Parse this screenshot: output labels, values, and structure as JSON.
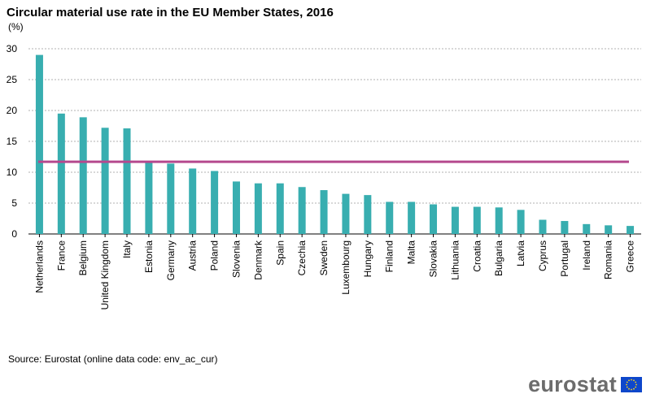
{
  "chart_data": {
    "type": "bar",
    "title": "Circular material use rate in the EU Member States, 2016",
    "ylabel": "(%)",
    "xlabel": "",
    "ylim": [
      0,
      30
    ],
    "yticks": [
      0,
      5,
      10,
      15,
      20,
      25,
      30
    ],
    "grid": true,
    "categories": [
      "Netherlands",
      "France",
      "Belgium",
      "United Kingdom",
      "Italy",
      "Estonia",
      "Germany",
      "Austria",
      "Poland",
      "Slovenia",
      "Denmark",
      "Spain",
      "Czechia",
      "Sweden",
      "Luxembourg",
      "Hungary",
      "Finland",
      "Malta",
      "Slovakia",
      "Lithuania",
      "Croatia",
      "Bulgaria",
      "Latvia",
      "Cyprus",
      "Portugal",
      "Ireland",
      "Romania",
      "Greece"
    ],
    "values": [
      29.0,
      19.5,
      18.9,
      17.2,
      17.1,
      11.6,
      11.4,
      10.6,
      10.2,
      8.5,
      8.2,
      8.2,
      7.6,
      7.1,
      6.5,
      6.3,
      5.2,
      5.2,
      4.8,
      4.4,
      4.4,
      4.3,
      3.9,
      2.3,
      2.1,
      1.6,
      1.4,
      1.3
    ],
    "reference_line": {
      "value": 11.7,
      "color": "#b5498e"
    },
    "bar_color": "#38aeb0"
  },
  "source_text": "Source: Eurostat (online data code: env_ac_cur)",
  "logo": {
    "text": "eurostat",
    "icon": "eu-flag-icon",
    "flag_color": "#0e47cb",
    "star_color": "#ffd617"
  }
}
